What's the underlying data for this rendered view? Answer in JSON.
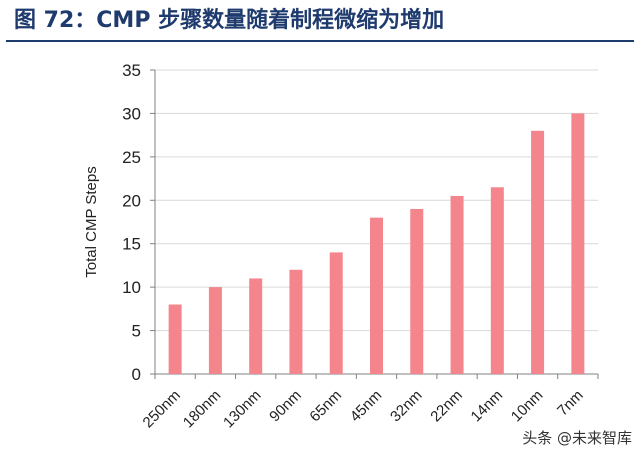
{
  "figure_title": "图 72：CMP 步骤数量随着制程微缩为增加",
  "watermark": "头条 @未来智库",
  "colors": {
    "title": "#1f3b6e",
    "bar": "#f4858c",
    "grid": "#d9d9d9",
    "axis": "#808080"
  },
  "chart_data": {
    "type": "bar",
    "title": "",
    "xlabel": "",
    "ylabel": "Total CMP Steps",
    "categories": [
      "250nm",
      "180nm",
      "130nm",
      "90nm",
      "65nm",
      "45nm",
      "32nm",
      "22nm",
      "14nm",
      "10nm",
      "7nm"
    ],
    "values": [
      8,
      10,
      11,
      12,
      14,
      18,
      19,
      20.5,
      21.5,
      28,
      30
    ],
    "ylim": [
      0,
      35
    ],
    "yticks": [
      0,
      5,
      10,
      15,
      20,
      25,
      30,
      35
    ],
    "grid": true,
    "legend": "none"
  }
}
